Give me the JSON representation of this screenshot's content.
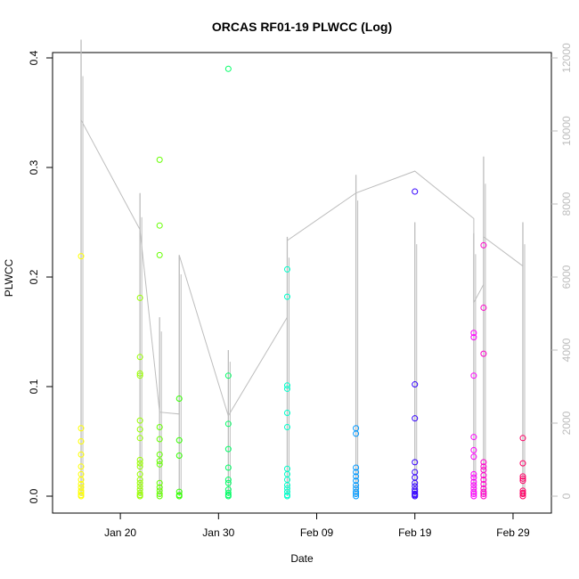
{
  "chart_data": {
    "type": "scatter",
    "title": "ORCAS RF01-19 PLWCC (Log)",
    "xlabel": "Date",
    "ylabel": "PLWCC",
    "x_axis": {
      "range": [
        "2016-01-15",
        "2016-03-02"
      ],
      "ticks": [
        {
          "date": "2016-01-20",
          "label": "Jan 20"
        },
        {
          "date": "2016-01-30",
          "label": "Jan 30"
        },
        {
          "date": "2016-02-09",
          "label": "Feb 09"
        },
        {
          "date": "2016-02-19",
          "label": "Feb 19"
        },
        {
          "date": "2016-02-29",
          "label": "Feb 29"
        }
      ]
    },
    "y_axis": {
      "range": [
        0,
        0.4
      ],
      "ticks": [
        "0.0",
        "0.1",
        "0.2",
        "0.3",
        "0.4"
      ]
    },
    "y2_axis": {
      "range": [
        0,
        12000
      ],
      "ticks": [
        "0",
        "2000",
        "4000",
        "6000",
        "8000",
        "10000",
        "12000"
      ],
      "color": "#bdbdbd"
    },
    "altitude_line": {
      "color": "#bdbdbd",
      "points": [
        {
          "date": "2016-01-16",
          "alt": 10300
        },
        {
          "date": "2016-01-22",
          "alt": 7300
        },
        {
          "date": "2016-01-24",
          "alt": 2300
        },
        {
          "date": "2016-01-26",
          "alt": 2250
        },
        {
          "date": "2016-01-26",
          "alt": 6600
        },
        {
          "date": "2016-01-31",
          "alt": 2200
        },
        {
          "date": "2016-02-06",
          "alt": 4900
        },
        {
          "date": "2016-02-06",
          "alt": 7000
        },
        {
          "date": "2016-02-13",
          "alt": 8300
        },
        {
          "date": "2016-02-19",
          "alt": 8900
        },
        {
          "date": "2016-02-25",
          "alt": 7600
        },
        {
          "date": "2016-02-25",
          "alt": 5300
        },
        {
          "date": "2016-02-26",
          "alt": 5800
        },
        {
          "date": "2016-02-26",
          "alt": 7100
        },
        {
          "date": "2016-03-01",
          "alt": 6300
        }
      ],
      "spikes": [
        {
          "date": "2016-01-16",
          "alt": 12500
        },
        {
          "date": "2016-01-22",
          "alt": 8300
        },
        {
          "date": "2016-01-24",
          "alt": 4900
        },
        {
          "date": "2016-01-26",
          "alt": 6600
        },
        {
          "date": "2016-01-31",
          "alt": 4000
        },
        {
          "date": "2016-02-06",
          "alt": 7100
        },
        {
          "date": "2016-02-13",
          "alt": 8800
        },
        {
          "date": "2016-02-19",
          "alt": 7500
        },
        {
          "date": "2016-02-25",
          "alt": 7200
        },
        {
          "date": "2016-02-26",
          "alt": 9300
        },
        {
          "date": "2016-03-01",
          "alt": 7500
        }
      ]
    },
    "series": [
      {
        "date": "2016-01-16",
        "color": "#ffff00",
        "values": [
          0.219,
          0.062,
          0.05,
          0.038,
          0.027,
          0.02,
          0.015,
          0.011,
          0.008,
          0.005,
          0.003,
          0.001,
          0.0
        ]
      },
      {
        "date": "2016-01-22",
        "color": "#99ff00",
        "values": [
          0.181,
          0.127,
          0.112,
          0.11,
          0.069,
          0.061,
          0.053,
          0.033,
          0.03,
          0.027,
          0.02,
          0.015,
          0.012,
          0.009,
          0.006,
          0.003,
          0.001,
          0.0
        ]
      },
      {
        "date": "2016-01-24",
        "color": "#66ff00",
        "values": [
          0.307,
          0.247,
          0.22,
          0.063,
          0.052,
          0.038,
          0.032,
          0.029,
          0.012,
          0.008,
          0.005,
          0.002,
          0.0
        ]
      },
      {
        "date": "2016-01-26",
        "color": "#33ff00",
        "values": [
          0.089,
          0.051,
          0.037,
          0.004,
          0.001,
          0.0
        ]
      },
      {
        "date": "2016-01-31",
        "color": "#00ff66",
        "values": [
          0.39,
          0.11,
          0.066,
          0.043,
          0.026,
          0.015,
          0.012,
          0.006,
          0.003,
          0.001,
          0.0
        ]
      },
      {
        "date": "2016-02-06",
        "color": "#00ffcc",
        "values": [
          0.207,
          0.182,
          0.101,
          0.098,
          0.076,
          0.063,
          0.025,
          0.02,
          0.015,
          0.01,
          0.007,
          0.004,
          0.001,
          0.0
        ]
      },
      {
        "date": "2016-02-13",
        "color": "#0099ff",
        "values": [
          0.062,
          0.057,
          0.026,
          0.022,
          0.018,
          0.014,
          0.01,
          0.007,
          0.004,
          0.002,
          0.0
        ]
      },
      {
        "date": "2016-02-19",
        "color": "#3300ff",
        "values": [
          0.278,
          0.102,
          0.071,
          0.031,
          0.022,
          0.017,
          0.012,
          0.009,
          0.006,
          0.004,
          0.002,
          0.001,
          0.0
        ]
      },
      {
        "date": "2016-02-25",
        "color": "#ff00ff",
        "values": [
          0.149,
          0.145,
          0.11,
          0.054,
          0.042,
          0.036,
          0.02,
          0.017,
          0.013,
          0.01,
          0.007,
          0.004,
          0.002,
          0.0
        ]
      },
      {
        "date": "2016-02-26",
        "color": "#ff00cc",
        "values": [
          0.229,
          0.172,
          0.13,
          0.031,
          0.027,
          0.024,
          0.019,
          0.015,
          0.011,
          0.007,
          0.004,
          0.002,
          0.0
        ]
      },
      {
        "date": "2016-03-01",
        "color": "#ff0066",
        "values": [
          0.053,
          0.03,
          0.018,
          0.016,
          0.014,
          0.005,
          0.003,
          0.002,
          0.0
        ]
      }
    ]
  }
}
